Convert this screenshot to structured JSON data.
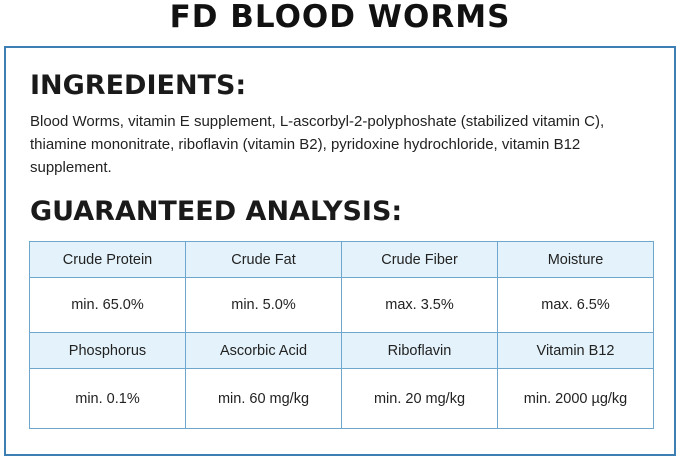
{
  "header": {
    "title": "FD BLOOD WORMS"
  },
  "ingredients": {
    "heading": "INGREDIENTS:",
    "text": "Blood Worms, vitamin E supplement, L-ascorbyl-2-polyphoshate (stabilized vitamin C), thiamine mononitrate, riboflavin (vitamin B2), pyridoxine hydrochloride, vitamin B12 supplement."
  },
  "analysis": {
    "heading": "GUARANTEED ANALYSIS:",
    "table": {
      "rows": [
        [
          "Crude Protein",
          "Crude Fat",
          "Crude Fiber",
          "Moisture"
        ],
        [
          "min. 65.0%",
          "min. 5.0%",
          "max. 3.5%",
          "max. 6.5%"
        ],
        [
          "Phosphorus",
          "Ascorbic Acid",
          "Riboflavin",
          "Vitamin B12"
        ],
        [
          "min. 0.1%",
          "min. 60 mg/kg",
          "min. 20 mg/kg",
          "min. 2000 µg/kg"
        ]
      ]
    }
  }
}
